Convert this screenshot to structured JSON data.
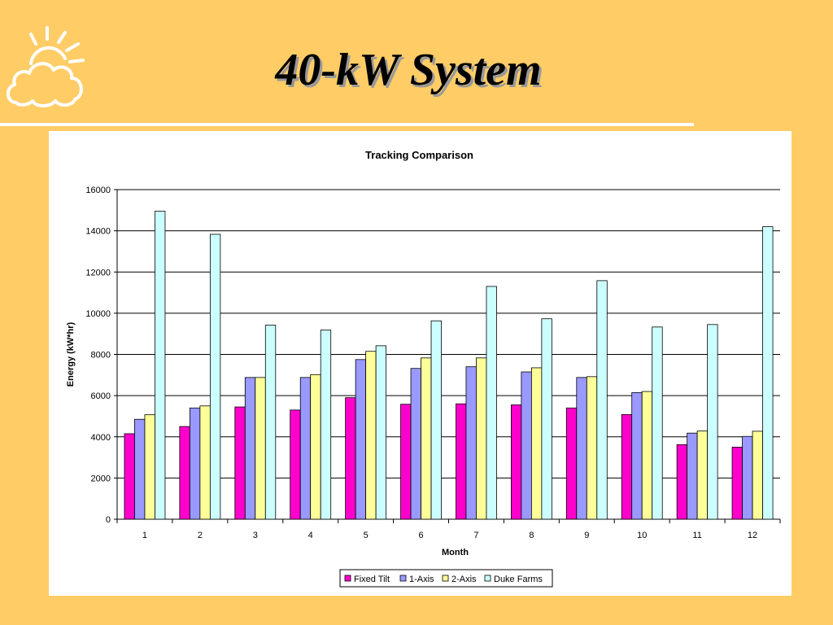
{
  "slide": {
    "title": "40-kW System",
    "logo_icon": "sun-cloud-icon"
  },
  "colors": {
    "background": "#FFCC66",
    "divider": "#FFFFFF",
    "series": [
      "#FF00CC",
      "#9999FF",
      "#FFFF99",
      "#CCFFFF"
    ]
  },
  "chart_data": {
    "type": "bar",
    "title": "Tracking Comparison",
    "xlabel": "Month",
    "ylabel": "Energy (kW*hr)",
    "categories": [
      "1",
      "2",
      "3",
      "4",
      "5",
      "6",
      "7",
      "8",
      "9",
      "10",
      "11",
      "12"
    ],
    "ylim": [
      0,
      16000
    ],
    "yticks": [
      "0",
      "2000",
      "4000",
      "6000",
      "8000",
      "10000",
      "12000",
      "14000",
      "16000"
    ],
    "grid": true,
    "legend_position": "bottom",
    "series": [
      {
        "name": "Fixed Tilt",
        "values": [
          4150,
          4500,
          5450,
          5300,
          5900,
          5580,
          5600,
          5550,
          5400,
          5080,
          3620,
          3500
        ]
      },
      {
        "name": "1-Axis",
        "values": [
          4850,
          5400,
          6880,
          6880,
          7750,
          7320,
          7400,
          7150,
          6880,
          6150,
          4180,
          4020
        ]
      },
      {
        "name": "2-Axis",
        "values": [
          5070,
          5500,
          6880,
          7020,
          8150,
          7830,
          7830,
          7350,
          6920,
          6200,
          4280,
          4270
        ]
      },
      {
        "name": "Duke Farms",
        "values": [
          14950,
          13830,
          9420,
          9180,
          8420,
          9630,
          11300,
          9730,
          11580,
          9330,
          9450,
          14200
        ]
      }
    ]
  }
}
